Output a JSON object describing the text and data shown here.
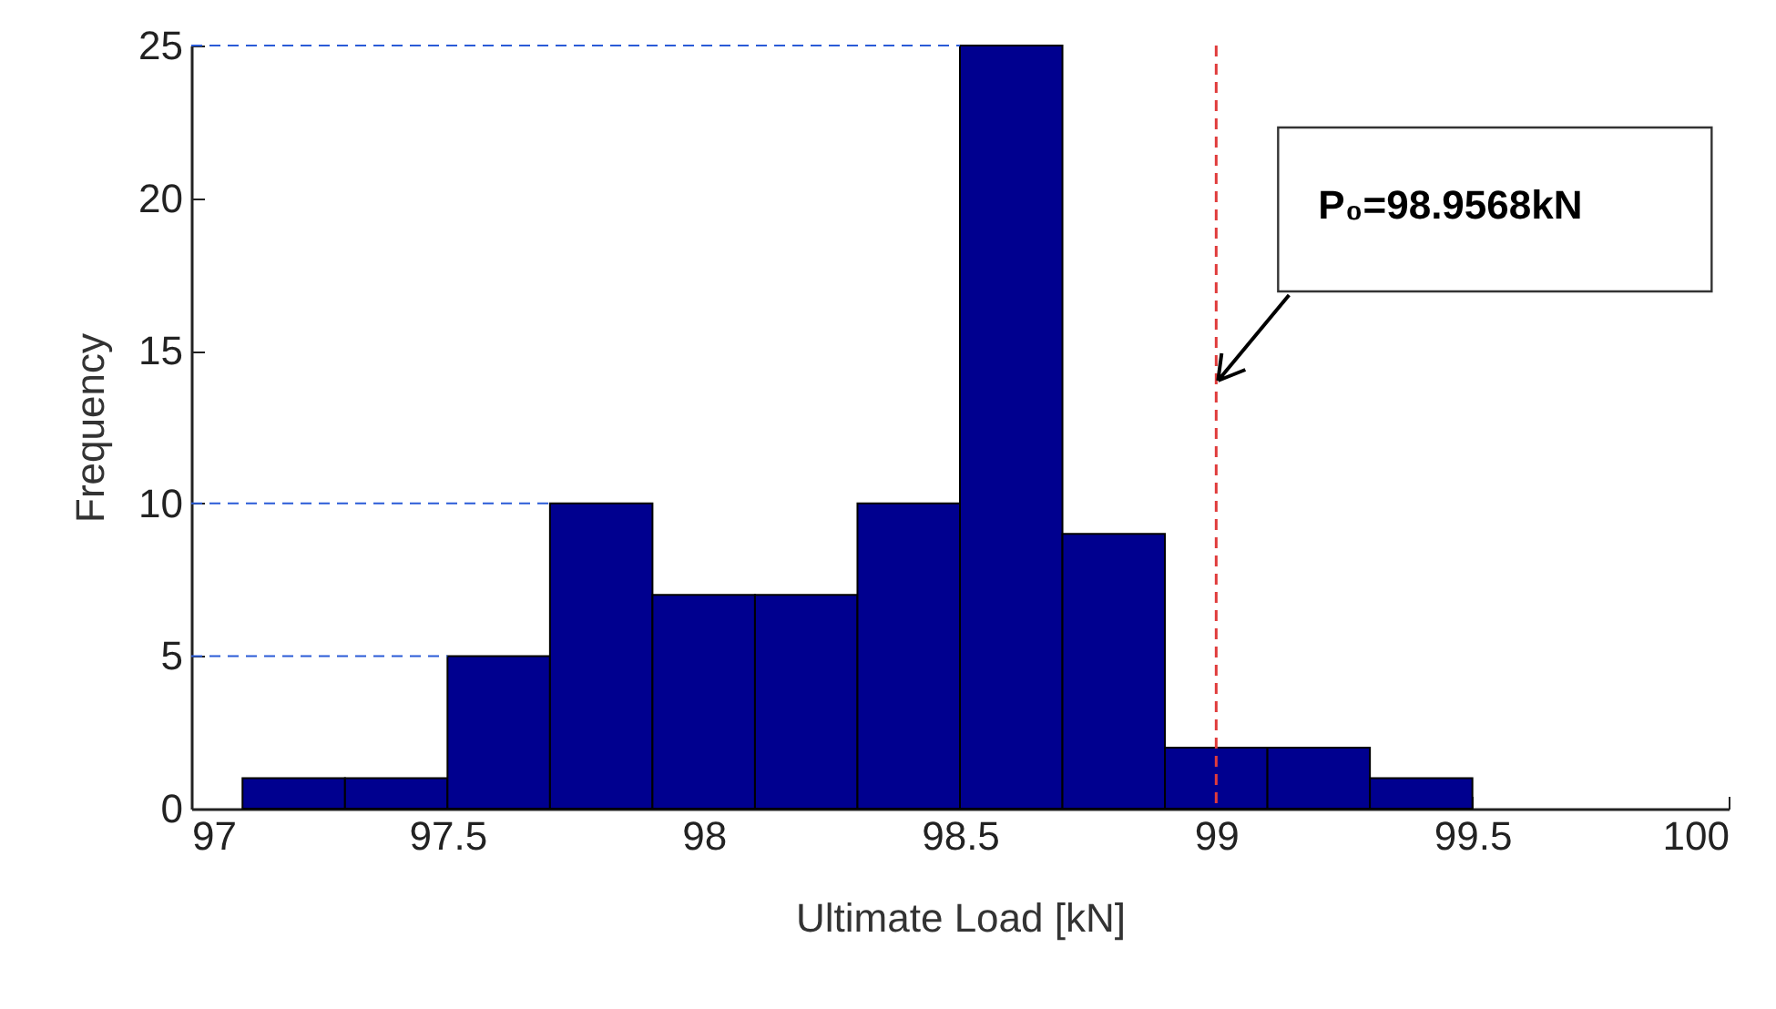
{
  "chart_data": {
    "type": "histogram",
    "xlabel": "Ultimate Load [kN]",
    "ylabel": "Frequency",
    "bins": [
      97.1,
      97.3,
      97.5,
      97.7,
      97.9,
      98.1,
      98.3,
      98.5,
      98.7,
      98.9,
      99.1,
      99.3,
      99.5
    ],
    "values": [
      1,
      1,
      5,
      10,
      7,
      7,
      10,
      25,
      9,
      2,
      2,
      1
    ],
    "color": "#00008f",
    "xlim": [
      97,
      100
    ],
    "xticks": [
      97,
      97.5,
      98,
      98.5,
      99,
      99.5,
      100
    ],
    "ylim": [
      0,
      25
    ],
    "yticks": [
      0,
      5,
      10,
      15,
      20,
      25
    ],
    "grid": false,
    "ref_lines": [
      {
        "axis": "x",
        "value": 99,
        "color": "#e03c3c",
        "line_style": "dashed"
      },
      {
        "axis": "y",
        "value": 25,
        "color": "#2a5bd7",
        "line_style": "dashed"
      },
      {
        "axis": "y",
        "value": 10,
        "color": "#2a5bd7",
        "line_style": "dashed"
      },
      {
        "axis": "y",
        "value": 5,
        "color": "#2a5bd7",
        "line_style": "dashed"
      }
    ],
    "annotations": [
      "P₀=98.9568kN"
    ]
  }
}
